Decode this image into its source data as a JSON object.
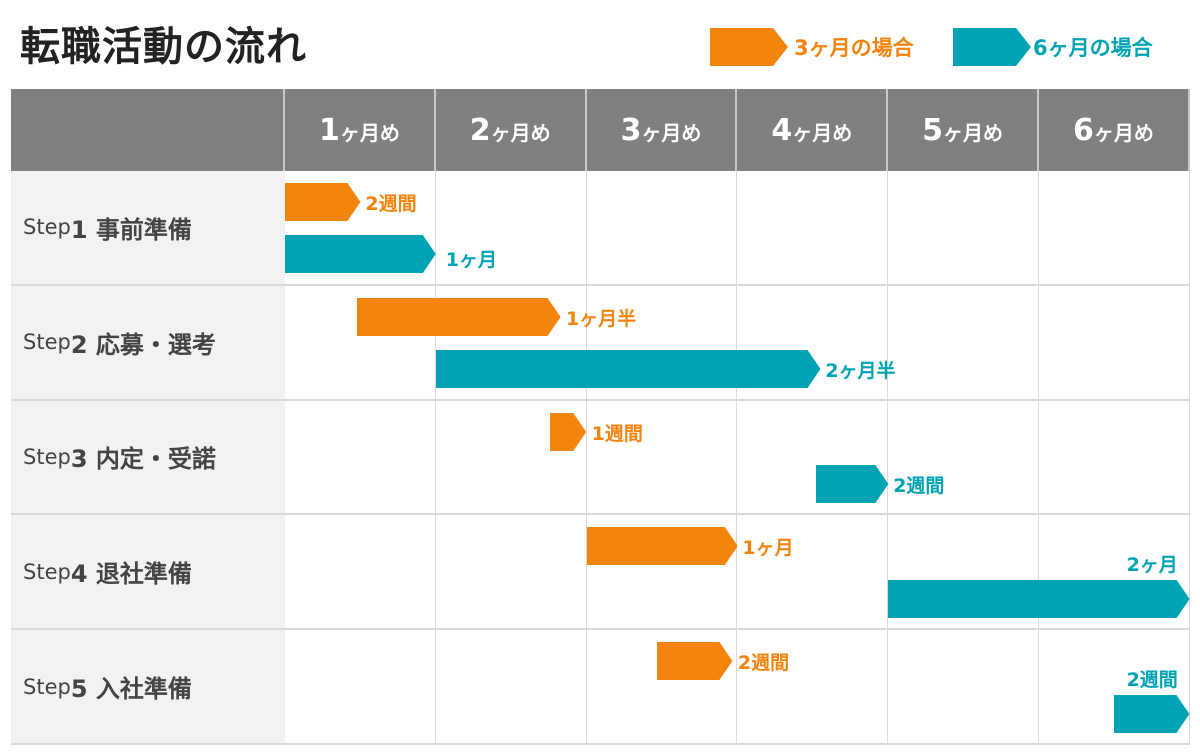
{
  "title": "転職活動の流れ",
  "legend": [
    {
      "label": "3ヶ月の場合",
      "color": "#f2840e"
    },
    {
      "label": "6ヶ月の場合",
      "color": "#00a3b4"
    }
  ],
  "chart_data": {
    "type": "gantt",
    "title": "転職活動の流れ",
    "columns": [
      "1ヶ月め",
      "2ヶ月め",
      "3ヶ月め",
      "4ヶ月め",
      "5ヶ月め",
      "6ヶ月め"
    ],
    "x_unit": "months",
    "xlim": [
      0,
      6
    ],
    "steps": [
      {
        "label": "Step1 事前準備",
        "bars": [
          {
            "series": "3ヶ月の場合",
            "start": 0,
            "end": 0.5,
            "label": "2週間",
            "label_position": "right"
          },
          {
            "series": "6ヶ月の場合",
            "start": 0,
            "end": 1.0,
            "label": "1ヶ月",
            "label_position": "right-low"
          }
        ]
      },
      {
        "label": "Step2 応募・選考",
        "bars": [
          {
            "series": "3ヶ月の場合",
            "start": 0.48,
            "end": 1.83,
            "label": "1ヶ月半",
            "label_position": "right"
          },
          {
            "series": "6ヶ月の場合",
            "start": 1.0,
            "end": 3.55,
            "label": "2ヶ月半",
            "label_position": "right"
          }
        ]
      },
      {
        "label": "Step3 内定・受諾",
        "bars": [
          {
            "series": "3ヶ月の場合",
            "start": 1.76,
            "end": 2.0,
            "label": "1週間",
            "label_position": "right"
          },
          {
            "series": "6ヶ月の場合",
            "start": 3.52,
            "end": 4.0,
            "label": "2週間",
            "label_position": "right"
          }
        ]
      },
      {
        "label": "Step4 退社準備",
        "bars": [
          {
            "series": "3ヶ月の場合",
            "start": 2.0,
            "end": 3.0,
            "label": "1ヶ月",
            "label_position": "right"
          },
          {
            "series": "6ヶ月の場合",
            "start": 4.0,
            "end": 6.0,
            "label": "2ヶ月",
            "label_position": "above"
          }
        ]
      },
      {
        "label": "Step5 入社準備",
        "bars": [
          {
            "series": "3ヶ月の場合",
            "start": 2.47,
            "end": 2.97,
            "label": "2週間",
            "label_position": "right"
          },
          {
            "series": "6ヶ月の場合",
            "start": 5.5,
            "end": 6.0,
            "label": "2週間",
            "label_position": "above"
          }
        ]
      }
    ]
  }
}
